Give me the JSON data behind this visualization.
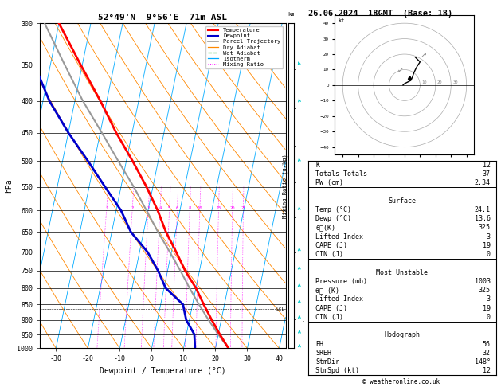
{
  "title_left": "52°49'N  9°56'E  71m ASL",
  "title_right": "26.06.2024  18GMT  (Base: 18)",
  "xlabel": "Dewpoint / Temperature (°C)",
  "ylabel_left": "hPa",
  "temp_color": "#ff0000",
  "dewp_color": "#0000cc",
  "parcel_color": "#999999",
  "dry_adiabat_color": "#ff8800",
  "wet_adiabat_color": "#00aa00",
  "isotherm_color": "#00aaff",
  "mixing_ratio_color": "#ff00ff",
  "temp_profile_pressure": [
    1000,
    950,
    900,
    850,
    800,
    750,
    700,
    650,
    600,
    550,
    500,
    450,
    400,
    350,
    300
  ],
  "temp_profile_temp": [
    24.1,
    20.5,
    17.0,
    13.5,
    10.0,
    5.5,
    1.5,
    -3.0,
    -7.0,
    -12.0,
    -18.0,
    -25.0,
    -32.0,
    -40.5,
    -50.0
  ],
  "dewp_profile_pressure": [
    1000,
    950,
    900,
    850,
    800,
    750,
    700,
    650,
    600,
    550,
    500,
    450,
    400,
    350,
    300
  ],
  "dewp_profile_temp": [
    13.6,
    12.5,
    9.0,
    7.0,
    0.5,
    -3.0,
    -7.5,
    -14.0,
    -18.5,
    -25.0,
    -32.0,
    -40.0,
    -48.0,
    -55.0,
    -58.0
  ],
  "parcel_profile_pressure": [
    1000,
    950,
    900,
    850,
    800,
    750,
    700,
    650,
    600,
    550,
    500,
    450,
    400,
    350,
    300
  ],
  "parcel_profile_temp": [
    24.1,
    20.0,
    16.0,
    12.0,
    8.0,
    4.0,
    -0.5,
    -5.5,
    -10.5,
    -16.0,
    -22.5,
    -29.5,
    -37.5,
    -45.5,
    -54.5
  ],
  "mixing_ratios": [
    1,
    2,
    3,
    4,
    5,
    6,
    8,
    10,
    15,
    20,
    25
  ],
  "lcl_pressure": 865,
  "info_K": 12,
  "info_TT": 37,
  "info_PW": 2.34,
  "sfc_temp": 24.1,
  "sfc_dewp": 13.6,
  "sfc_thetae": 325,
  "sfc_li": 3,
  "sfc_cape": 19,
  "sfc_cin": 0,
  "mu_pressure": 1003,
  "mu_thetae": 325,
  "mu_li": 3,
  "mu_cape": 19,
  "mu_cin": 0,
  "hodo_eh": 56,
  "hodo_sreh": 32,
  "hodo_stmdir": 148,
  "hodo_stmspd": 12,
  "copyright": "© weatheronline.co.uk"
}
